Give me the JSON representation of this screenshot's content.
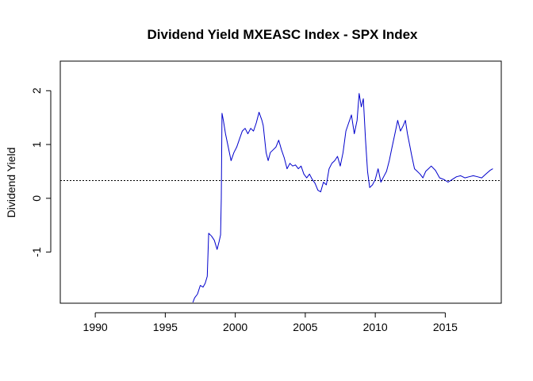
{
  "chart_data": {
    "type": "line",
    "title": "Dividend Yield MXEASC Index - SPX Index",
    "xlabel": "",
    "ylabel": "Dividend Yield",
    "xlim": [
      1987.5,
      2019.0
    ],
    "ylim": [
      -1.95,
      2.55
    ],
    "x_ticks": [
      1990,
      1995,
      2000,
      2005,
      2010,
      2015
    ],
    "x_tick_labels": [
      "1990",
      "1995",
      "2000",
      "2005",
      "2010",
      "2015"
    ],
    "y_ticks": [
      -1,
      0,
      1,
      2
    ],
    "y_tick_labels": [
      "-1",
      "0",
      "1",
      "2"
    ],
    "grid": false,
    "reference_line": {
      "y": 0.33,
      "style": "dotted",
      "color": "#000000"
    },
    "series": [
      {
        "color": "#0000cc",
        "x": [
          1996.95,
          1997.1,
          1997.3,
          1997.5,
          1997.7,
          1997.85,
          1998.0,
          1998.1,
          1998.3,
          1998.5,
          1998.7,
          1998.85,
          1998.95,
          1999.0,
          1999.05,
          1999.15,
          1999.3,
          1999.5,
          1999.7,
          1999.9,
          2000.1,
          2000.3,
          2000.5,
          2000.7,
          2000.9,
          2001.1,
          2001.3,
          2001.5,
          2001.7,
          2001.9,
          2002.0,
          2002.1,
          2002.2,
          2002.35,
          2002.5,
          2002.7,
          2002.9,
          2003.1,
          2003.3,
          2003.5,
          2003.7,
          2003.9,
          2004.1,
          2004.3,
          2004.5,
          2004.7,
          2004.9,
          2005.1,
          2005.3,
          2005.5,
          2005.7,
          2005.9,
          2006.1,
          2006.3,
          2006.5,
          2006.7,
          2006.9,
          2007.1,
          2007.3,
          2007.5,
          2007.7,
          2007.9,
          2008.1,
          2008.3,
          2008.5,
          2008.7,
          2008.85,
          2009.0,
          2009.15,
          2009.3,
          2009.45,
          2009.6,
          2009.8,
          2010.0,
          2010.2,
          2010.4,
          2010.6,
          2010.8,
          2011.0,
          2011.2,
          2011.4,
          2011.6,
          2011.8,
          2012.0,
          2012.15,
          2012.3,
          2012.45,
          2012.6,
          2012.8,
          2013.0,
          2013.2,
          2013.4,
          2013.6,
          2013.8,
          2014.0,
          2014.3,
          2014.6,
          2014.9,
          2015.2,
          2015.5,
          2015.8,
          2016.1,
          2016.4,
          2016.7,
          2017.0,
          2017.3,
          2017.6,
          2017.9,
          2018.2,
          2018.4
        ],
        "y": [
          -1.95,
          -1.85,
          -1.78,
          -1.62,
          -1.65,
          -1.58,
          -1.45,
          -0.65,
          -0.7,
          -0.78,
          -0.95,
          -0.8,
          -0.68,
          0.0,
          1.58,
          1.45,
          1.2,
          0.95,
          0.7,
          0.85,
          0.95,
          1.1,
          1.25,
          1.3,
          1.2,
          1.3,
          1.25,
          1.4,
          1.6,
          1.45,
          1.35,
          1.1,
          0.85,
          0.7,
          0.85,
          0.9,
          0.95,
          1.08,
          0.9,
          0.75,
          0.55,
          0.65,
          0.6,
          0.62,
          0.55,
          0.6,
          0.45,
          0.38,
          0.45,
          0.35,
          0.28,
          0.15,
          0.12,
          0.3,
          0.25,
          0.55,
          0.65,
          0.7,
          0.78,
          0.6,
          0.85,
          1.25,
          1.4,
          1.55,
          1.2,
          1.45,
          1.95,
          1.7,
          1.85,
          1.1,
          0.5,
          0.2,
          0.25,
          0.35,
          0.55,
          0.3,
          0.4,
          0.5,
          0.7,
          0.95,
          1.2,
          1.45,
          1.25,
          1.35,
          1.45,
          1.2,
          1.0,
          0.8,
          0.55,
          0.5,
          0.45,
          0.38,
          0.5,
          0.55,
          0.6,
          0.52,
          0.38,
          0.35,
          0.3,
          0.35,
          0.4,
          0.42,
          0.38,
          0.4,
          0.42,
          0.4,
          0.38,
          0.45,
          0.52,
          0.55
        ]
      }
    ]
  }
}
